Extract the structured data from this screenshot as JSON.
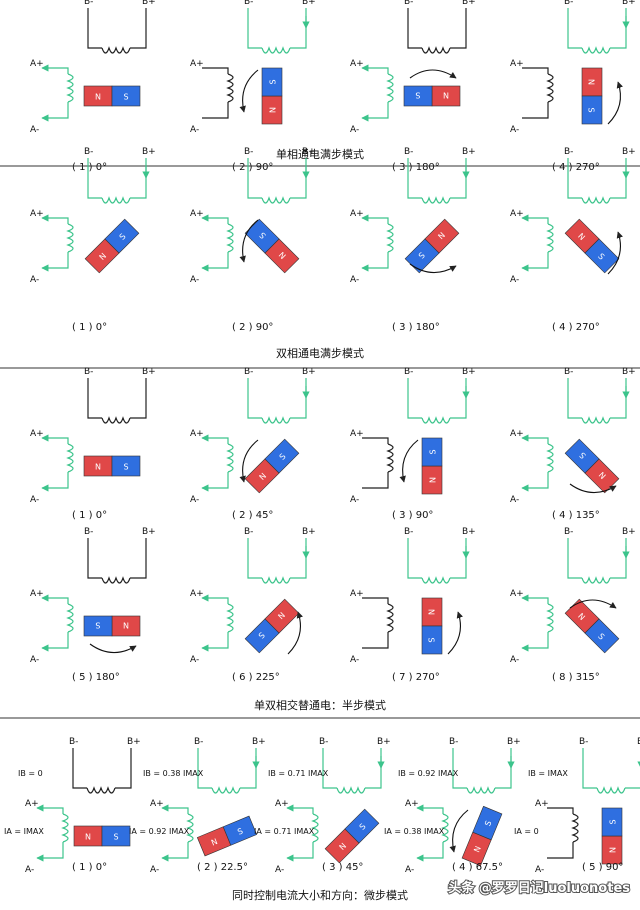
{
  "colors": {
    "active": "#3cc48c",
    "inactive": "#222222",
    "magnet_n": "#e04848",
    "magnet_s": "#2f6fe0",
    "divider": "#333333"
  },
  "coil_labels": {
    "a_plus": "A+",
    "a_minus": "A-",
    "b_plus": "B+",
    "b_minus": "B-",
    "n": "N",
    "s": "S"
  },
  "sections": [
    {
      "title": "单相通电满步模式",
      "diagrams": [
        {
          "label": "( 1 ) 0°",
          "angle": 0,
          "a": "active",
          "b": "inactive",
          "arrow": "none"
        },
        {
          "label": "( 2 ) 90°",
          "angle": 90,
          "a": "inactive",
          "b": "active",
          "arrow": "ccw-left"
        },
        {
          "label": "( 3 ) 180°",
          "angle": 180,
          "a": "active",
          "b": "inactive",
          "arrow": "top"
        },
        {
          "label": "( 4 ) 270°",
          "angle": 270,
          "a": "inactive",
          "b": "active",
          "arrow": "cw-right"
        }
      ]
    },
    {
      "title": "双相通电满步模式",
      "diagrams": [
        {
          "label": "( 1 ) 0°",
          "angle": 45,
          "a": "active",
          "b": "active",
          "arrow": "none"
        },
        {
          "label": "( 2 ) 90°",
          "angle": 135,
          "a": "active",
          "b": "active",
          "arrow": "ccw-left"
        },
        {
          "label": "( 3 ) 180°",
          "angle": 225,
          "a": "active",
          "b": "active",
          "arrow": "bottom"
        },
        {
          "label": "( 4 ) 270°",
          "angle": 315,
          "a": "active",
          "b": "active",
          "arrow": "cw-right"
        }
      ]
    },
    {
      "title": "单双相交替通电：半步模式",
      "diagrams": [
        {
          "label": "( 1 ) 0°",
          "angle": 0,
          "a": "active",
          "b": "inactive",
          "arrow": "none"
        },
        {
          "label": "( 2 ) 45°",
          "angle": 45,
          "a": "active",
          "b": "active",
          "arrow": "ccw-left"
        },
        {
          "label": "( 3 ) 90°",
          "angle": 90,
          "a": "inactive",
          "b": "active",
          "arrow": "ccw-left"
        },
        {
          "label": "( 4 ) 135°",
          "angle": 135,
          "a": "active",
          "b": "active",
          "arrow": "bottom"
        },
        {
          "label": "( 5 ) 180°",
          "angle": 180,
          "a": "active",
          "b": "inactive",
          "arrow": "bottom"
        },
        {
          "label": "( 6 ) 225°",
          "angle": 225,
          "a": "active",
          "b": "active",
          "arrow": "cw-right"
        },
        {
          "label": "( 7 ) 270°",
          "angle": 270,
          "a": "inactive",
          "b": "active",
          "arrow": "cw-right"
        },
        {
          "label": "( 8 ) 315°",
          "angle": 315,
          "a": "active",
          "b": "active",
          "arrow": "top"
        }
      ]
    },
    {
      "title": "同时控制电流大小和方向：微步模式",
      "diagrams": [
        {
          "label": "( 1 ) 0°",
          "angle": 0,
          "a": "active",
          "b": "inactive",
          "arrow": "none",
          "ib": "0",
          "ia": "MAX"
        },
        {
          "label": "( 2 ) 22.5°",
          "angle": 22.5,
          "a": "active",
          "b": "active",
          "arrow": "none",
          "ib": "0.38",
          "ia": "0.92"
        },
        {
          "label": "( 3 ) 45°",
          "angle": 45,
          "a": "active",
          "b": "active",
          "arrow": "none",
          "ib": "0.71",
          "ia": "0.71"
        },
        {
          "label": "( 4 ) 67.5°",
          "angle": 67.5,
          "a": "active",
          "b": "active",
          "arrow": "ccw-left",
          "ib": "0.92",
          "ia": "0.38"
        },
        {
          "label": "( 5 ) 90°",
          "angle": 90,
          "a": "inactive",
          "b": "active",
          "arrow": "none",
          "ib": "MAX",
          "ia": "0"
        }
      ]
    }
  ],
  "watermark": "头条 @罗罗日记luoluonotes"
}
